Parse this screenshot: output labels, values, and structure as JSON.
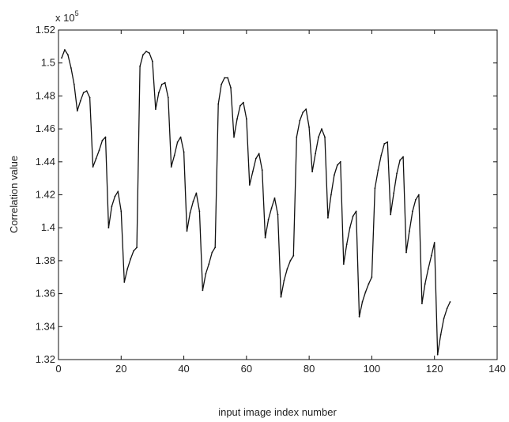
{
  "chart_data": {
    "type": "line",
    "title": "",
    "xlabel": "input image index number",
    "ylabel": "Correlation value",
    "y_exponent_label": "x 10",
    "y_exponent_power": "5",
    "xlim": [
      0,
      140
    ],
    "ylim": [
      1.32,
      1.52
    ],
    "x_ticks": [
      0,
      20,
      40,
      60,
      80,
      100,
      120,
      140
    ],
    "x_tick_labels": [
      "0",
      "20",
      "40",
      "60",
      "80",
      "100",
      "120",
      "140"
    ],
    "y_ticks": [
      1.32,
      1.34,
      1.36,
      1.38,
      1.4,
      1.42,
      1.44,
      1.46,
      1.48,
      1.5,
      1.52
    ],
    "y_tick_labels": [
      "1.32",
      "1.34",
      "1.36",
      "1.38",
      "1.4",
      "1.42",
      "1.44",
      "1.46",
      "1.48",
      "1.5",
      "1.52"
    ],
    "grid": false,
    "series": [
      {
        "color": "#111111",
        "x": [
          1,
          2,
          3,
          4,
          5,
          6,
          7,
          8,
          9,
          10,
          11,
          12,
          13,
          14,
          15,
          16,
          17,
          18,
          19,
          20,
          21,
          22,
          23,
          24,
          25,
          26,
          27,
          28,
          29,
          30,
          31,
          32,
          33,
          34,
          35,
          36,
          37,
          38,
          39,
          40,
          41,
          42,
          43,
          44,
          45,
          46,
          47,
          48,
          49,
          50,
          51,
          52,
          53,
          54,
          55,
          56,
          57,
          58,
          59,
          60,
          61,
          62,
          63,
          64,
          65,
          66,
          67,
          68,
          69,
          70,
          71,
          72,
          73,
          74,
          75,
          76,
          77,
          78,
          79,
          80,
          81,
          82,
          83,
          84,
          85,
          86,
          87,
          88,
          89,
          90,
          91,
          92,
          93,
          94,
          95,
          96,
          97,
          98,
          99,
          100,
          101,
          102,
          103,
          104,
          105,
          106,
          107,
          108,
          109,
          110,
          111,
          112,
          113,
          114,
          115,
          116,
          117,
          118,
          119,
          120,
          121,
          122,
          123,
          124,
          125
        ],
        "values": [
          1.503,
          1.508,
          1.505,
          1.497,
          1.487,
          1.471,
          1.477,
          1.482,
          1.483,
          1.479,
          1.437,
          1.442,
          1.447,
          1.453,
          1.455,
          1.4,
          1.413,
          1.419,
          1.422,
          1.41,
          1.367,
          1.375,
          1.381,
          1.386,
          1.388,
          1.498,
          1.505,
          1.507,
          1.506,
          1.501,
          1.472,
          1.482,
          1.487,
          1.488,
          1.479,
          1.437,
          1.444,
          1.452,
          1.455,
          1.446,
          1.398,
          1.409,
          1.416,
          1.421,
          1.41,
          1.362,
          1.372,
          1.378,
          1.385,
          1.388,
          1.475,
          1.487,
          1.491,
          1.491,
          1.485,
          1.455,
          1.466,
          1.474,
          1.476,
          1.466,
          1.426,
          1.434,
          1.442,
          1.445,
          1.435,
          1.394,
          1.405,
          1.412,
          1.418,
          1.408,
          1.358,
          1.368,
          1.375,
          1.38,
          1.383,
          1.455,
          1.465,
          1.47,
          1.472,
          1.461,
          1.434,
          1.445,
          1.455,
          1.46,
          1.455,
          1.406,
          1.42,
          1.432,
          1.438,
          1.44,
          1.378,
          1.39,
          1.4,
          1.407,
          1.41,
          1.346,
          1.355,
          1.361,
          1.366,
          1.37,
          1.424,
          1.435,
          1.444,
          1.451,
          1.452,
          1.408,
          1.421,
          1.433,
          1.441,
          1.443,
          1.385,
          1.398,
          1.41,
          1.417,
          1.42,
          1.354,
          1.366,
          1.375,
          1.383,
          1.391,
          1.323,
          1.335,
          1.345,
          1.351,
          1.355
        ]
      }
    ]
  }
}
